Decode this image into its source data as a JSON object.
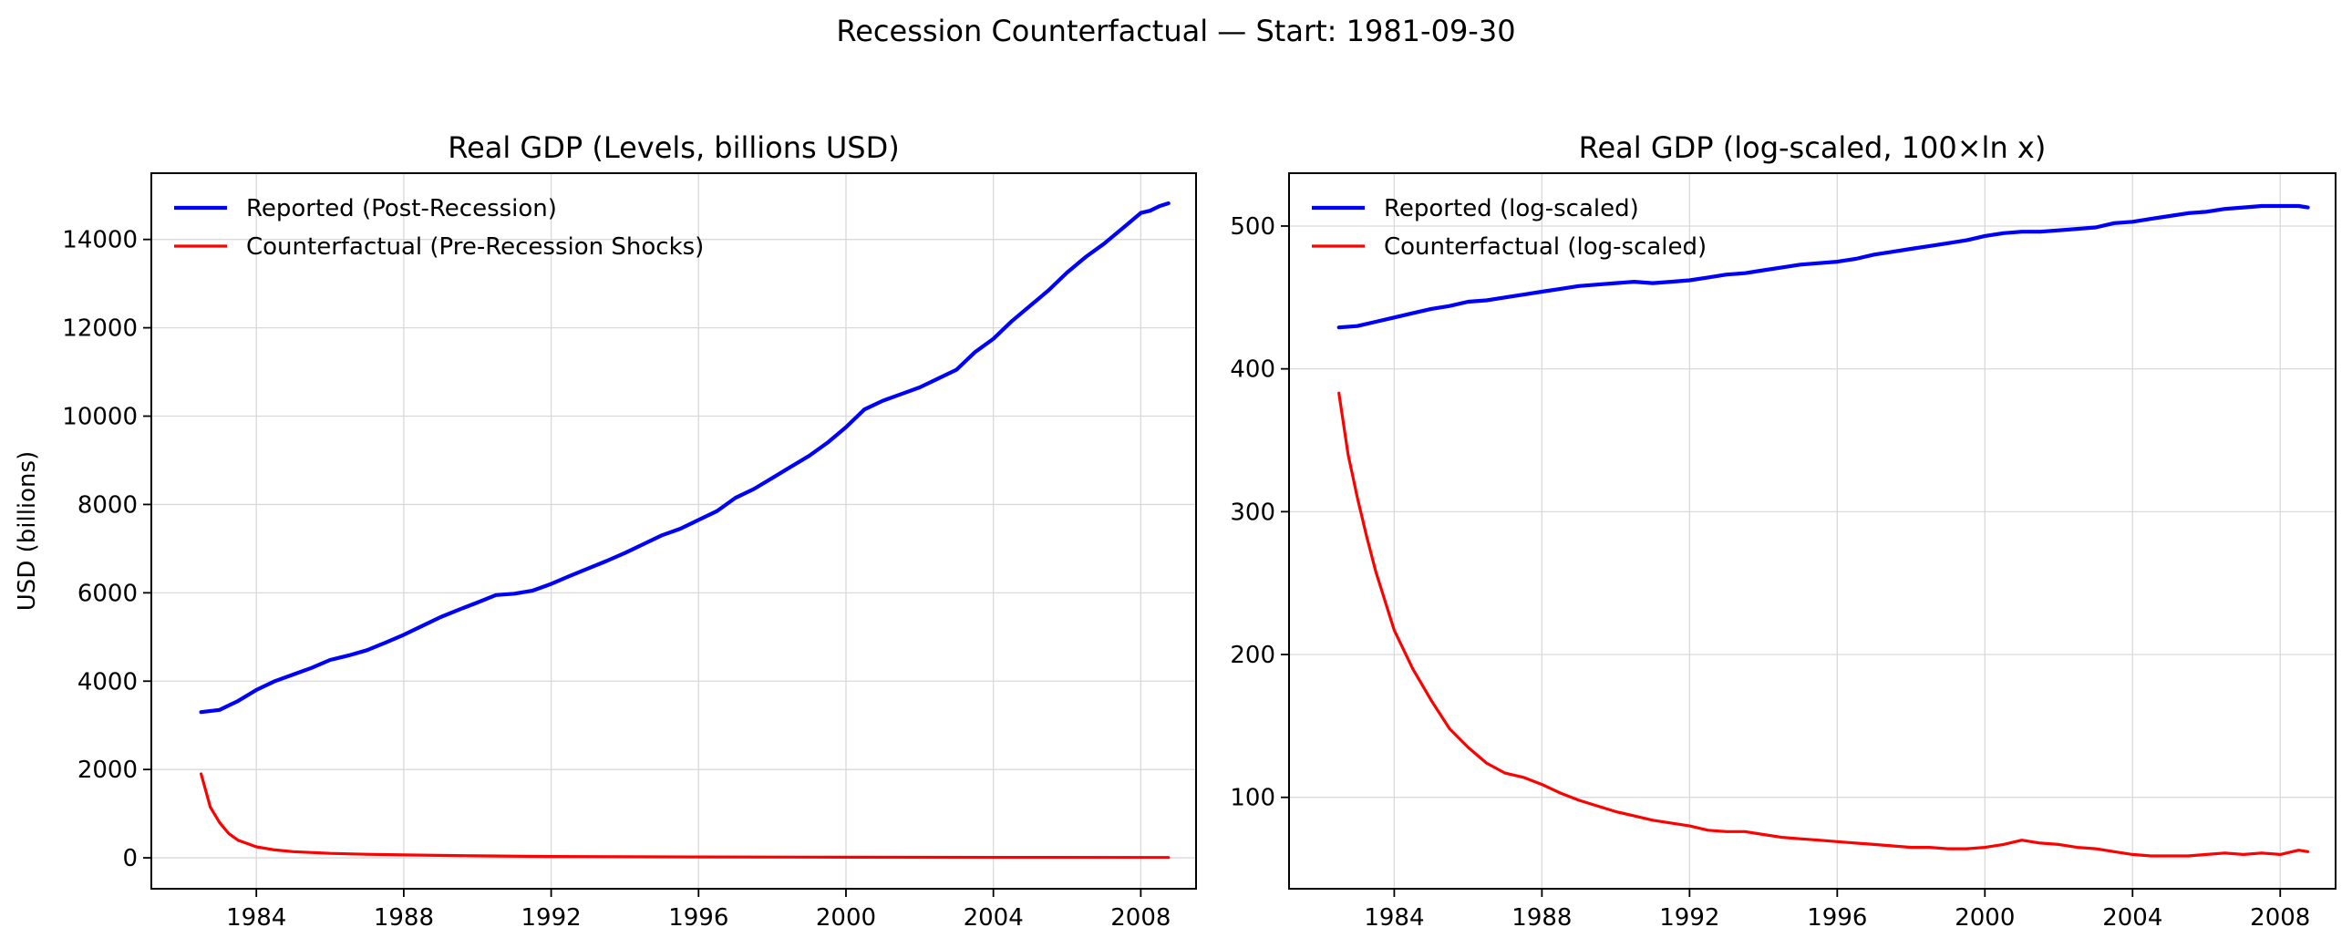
{
  "suptitle": "Recession Counterfactual — Start: 1981-09-30",
  "chart_data": [
    {
      "type": "line",
      "title": "Real GDP (Levels, billions USD)",
      "xlabel": "",
      "ylabel": "USD (billions)",
      "xlim": [
        1981.15,
        2009.5
      ],
      "ylim": [
        -700,
        15500
      ],
      "xticks": [
        1984,
        1988,
        1992,
        1996,
        2000,
        2004,
        2008
      ],
      "yticks": [
        0,
        2000,
        4000,
        6000,
        8000,
        10000,
        12000,
        14000
      ],
      "grid": true,
      "legend_position": "upper left",
      "series": [
        {
          "name": "Reported (Post-Recession)",
          "color": "#0000ff",
          "x": [
            1982.5,
            1983,
            1983.5,
            1984,
            1984.5,
            1985,
            1985.5,
            1986,
            1986.5,
            1987,
            1987.5,
            1988,
            1988.5,
            1989,
            1989.5,
            1990,
            1990.5,
            1991,
            1991.5,
            1992,
            1992.5,
            1993,
            1993.5,
            1994,
            1994.5,
            1995,
            1995.5,
            1996,
            1996.5,
            1997,
            1997.5,
            1998,
            1998.5,
            1999,
            1999.5,
            2000,
            2000.5,
            2001,
            2001.5,
            2002,
            2002.5,
            2003,
            2003.5,
            2004,
            2004.5,
            2005,
            2005.5,
            2006,
            2006.5,
            2007,
            2007.5,
            2008,
            2008.25,
            2008.5,
            2008.75
          ],
          "y": [
            3300,
            3350,
            3550,
            3800,
            4000,
            4150,
            4300,
            4480,
            4580,
            4700,
            4870,
            5050,
            5250,
            5450,
            5620,
            5780,
            5950,
            5980,
            6050,
            6200,
            6380,
            6550,
            6720,
            6900,
            7100,
            7300,
            7450,
            7650,
            7850,
            8150,
            8350,
            8600,
            8850,
            9100,
            9400,
            9750,
            10150,
            10350,
            10500,
            10650,
            10850,
            11050,
            11450,
            11750,
            12150,
            12500,
            12850,
            13250,
            13600,
            13900,
            14250,
            14600,
            14650,
            14750,
            14820
          ]
        },
        {
          "name": "Counterfactual (Pre-Recession Shocks)",
          "color": "#ff0000",
          "x": [
            1982.5,
            1982.75,
            1983,
            1983.25,
            1983.5,
            1984,
            1984.5,
            1985,
            1986,
            1987,
            1988,
            1990,
            1992,
            1996,
            2000,
            2004,
            2008,
            2008.75
          ],
          "y": [
            1900,
            1150,
            800,
            550,
            400,
            250,
            180,
            140,
            100,
            80,
            65,
            45,
            30,
            20,
            15,
            10,
            8,
            8
          ]
        }
      ]
    },
    {
      "type": "line",
      "title": "Real GDP (log-scaled, 100×ln x)",
      "xlabel": "",
      "ylabel": "",
      "xlim": [
        1981.15,
        2009.5
      ],
      "ylim": [
        36,
        537
      ],
      "xticks": [
        1984,
        1988,
        1992,
        1996,
        2000,
        2004,
        2008
      ],
      "yticks": [
        100,
        200,
        300,
        400,
        500
      ],
      "grid": true,
      "legend_position": "upper left",
      "series": [
        {
          "name": "Reported (log-scaled)",
          "color": "#0000ff",
          "x": [
            1982.5,
            1983,
            1983.5,
            1984,
            1984.5,
            1985,
            1985.5,
            1986,
            1986.5,
            1987,
            1987.5,
            1988,
            1988.5,
            1989,
            1989.5,
            1990,
            1990.5,
            1991,
            1991.5,
            1992,
            1992.5,
            1993,
            1993.5,
            1994,
            1994.5,
            1995,
            1995.5,
            1996,
            1996.5,
            1997,
            1997.5,
            1998,
            1998.5,
            1999,
            1999.5,
            2000,
            2000.5,
            2001,
            2001.5,
            2002,
            2002.5,
            2003,
            2003.5,
            2004,
            2004.5,
            2005,
            2005.5,
            2006,
            2006.5,
            2007,
            2007.5,
            2008,
            2008.25,
            2008.5,
            2008.75
          ],
          "y": [
            429,
            430,
            433,
            436,
            439,
            442,
            444,
            447,
            448,
            450,
            452,
            454,
            456,
            458,
            459,
            460,
            461,
            460,
            461,
            462,
            464,
            466,
            467,
            469,
            471,
            473,
            474,
            475,
            477,
            480,
            482,
            484,
            486,
            488,
            490,
            493,
            495,
            496,
            496,
            497,
            498,
            499,
            502,
            503,
            505,
            507,
            509,
            510,
            512,
            513,
            514,
            514,
            514,
            514,
            513
          ]
        },
        {
          "name": "Counterfactual (log-scaled)",
          "color": "#ff0000",
          "x": [
            1982.5,
            1982.75,
            1983,
            1983.25,
            1983.5,
            1984,
            1984.5,
            1985,
            1985.5,
            1986,
            1986.5,
            1987,
            1987.5,
            1988,
            1988.5,
            1989,
            1989.5,
            1990,
            1990.5,
            1991,
            1991.5,
            1992,
            1992.5,
            1993,
            1993.5,
            1994,
            1994.5,
            1995,
            1995.5,
            1996,
            1996.5,
            1997,
            1997.5,
            1998,
            1998.5,
            1999,
            1999.5,
            2000,
            2000.5,
            2001,
            2001.5,
            2002,
            2002.5,
            2003,
            2003.5,
            2004,
            2004.5,
            2005,
            2005.5,
            2006,
            2006.5,
            2007,
            2007.5,
            2008,
            2008.5,
            2008.75
          ],
          "y": [
            383,
            340,
            310,
            283,
            258,
            217,
            190,
            168,
            148,
            135,
            124,
            117,
            114,
            109,
            103,
            98,
            94,
            90,
            87,
            84,
            82,
            80,
            77,
            76,
            76,
            74,
            72,
            71,
            70,
            69,
            68,
            67,
            66,
            65,
            65,
            64,
            64,
            65,
            67,
            70,
            68,
            67,
            65,
            64,
            62,
            60,
            59,
            59,
            59,
            60,
            61,
            60,
            61,
            60,
            63,
            62
          ]
        }
      ]
    }
  ]
}
